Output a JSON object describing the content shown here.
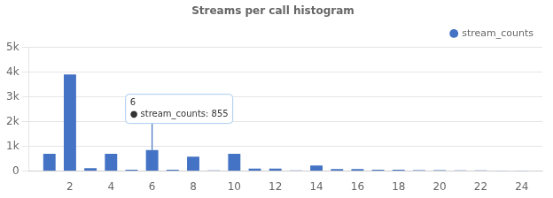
{
  "chart_data": {
    "type": "bar",
    "title": "Streams per call histogram",
    "x": [
      1,
      2,
      3,
      4,
      5,
      6,
      7,
      8,
      9,
      10,
      11,
      12,
      13,
      14,
      15,
      16,
      17,
      18,
      19,
      20,
      21,
      22,
      23,
      24
    ],
    "series": [
      {
        "name": "stream_counts",
        "color": "#4472C4",
        "values": [
          700,
          3900,
          120,
          700,
          60,
          855,
          60,
          580,
          30,
          700,
          100,
          100,
          30,
          230,
          80,
          80,
          60,
          60,
          40,
          40,
          30,
          30,
          15,
          15
        ]
      }
    ],
    "xlim": [
      0,
      25
    ],
    "xticks": [
      2,
      4,
      6,
      8,
      10,
      12,
      14,
      16,
      18,
      20,
      22,
      24
    ],
    "ylim": [
      0,
      5000
    ],
    "yticks": [
      0,
      {
        "value": 1000,
        "label": "1k"
      },
      {
        "value": 2000,
        "label": "2k"
      },
      {
        "value": 3000,
        "label": "3k"
      },
      {
        "value": 4000,
        "label": "4k"
      },
      {
        "value": 5000,
        "label": "5k"
      }
    ],
    "grid": true,
    "legend": "upper right",
    "annotations": [
      {
        "text": [
          "6",
          "● stream_counts: 855"
        ],
        "x": 6,
        "y": 855
      }
    ]
  }
}
